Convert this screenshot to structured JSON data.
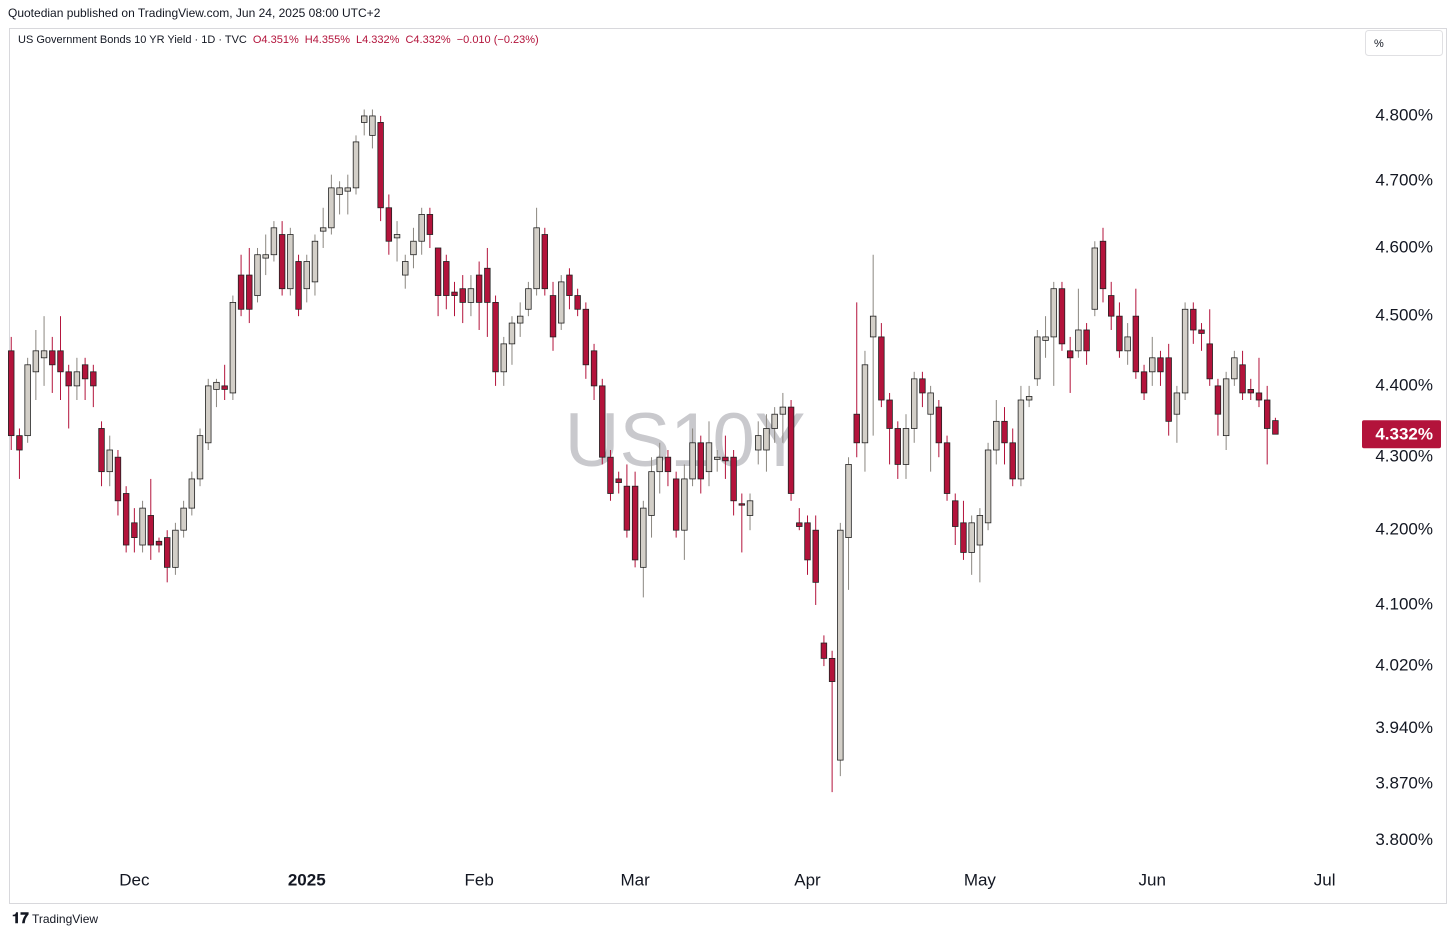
{
  "chart_data": {
    "type": "candlestick",
    "publisher": "Quotedian published on TradingView.com, Jun 24, 2025 08:00 UTC+2",
    "title": "US Government Bonds 10 YR Yield · 1D · TVC",
    "ohlc_header": [
      "O4.351%",
      "H4.355%",
      "L4.332%",
      "C4.332%",
      "−0.010 (−0.23%)"
    ],
    "watermark": "US10Y",
    "scale_label": "%",
    "footer": "TradingView",
    "log_scale": true,
    "up_color": "#d3cfc8",
    "down_color": "#b3133b",
    "open": [
      4.45,
      4.33,
      4.33,
      4.42,
      4.44,
      4.45,
      4.45,
      4.42,
      4.4,
      4.43,
      4.42,
      4.34,
      4.28,
      4.3,
      4.25,
      4.21,
      4.18,
      4.22,
      4.185,
      4.19,
      4.15,
      4.2,
      4.23,
      4.27,
      4.32,
      4.395,
      4.4,
      4.39,
      4.56,
      4.56,
      4.53,
      4.585,
      4.59,
      4.62,
      4.54,
      4.58,
      4.54,
      4.55,
      4.625,
      4.63,
      4.68,
      4.685,
      4.69,
      4.79,
      4.77,
      4.79,
      4.66,
      4.615,
      4.56,
      4.59,
      4.61,
      4.65,
      4.6,
      4.58,
      4.535,
      4.54,
      4.52,
      4.56,
      4.57,
      4.52,
      4.42,
      4.46,
      4.49,
      4.51,
      4.54,
      4.62,
      4.53,
      4.49,
      4.56,
      4.53,
      4.51,
      4.45,
      4.4,
      4.3,
      4.27,
      4.26,
      4.26,
      4.15,
      4.22,
      4.28,
      4.3,
      4.27,
      4.2,
      4.27,
      4.32,
      4.28,
      4.297,
      4.3,
      4.3,
      4.236,
      4.22,
      4.31,
      4.31,
      4.34,
      4.36,
      4.37,
      4.21,
      4.21,
      4.2,
      4.05,
      4.03,
      3.9,
      4.19,
      4.36,
      4.32,
      4.47,
      4.47,
      4.38,
      4.34,
      4.29,
      4.34,
      4.41,
      4.36,
      4.37,
      4.32,
      4.24,
      4.21,
      4.17,
      4.18,
      4.21,
      4.31,
      4.35,
      4.32,
      4.27,
      4.38,
      4.41,
      4.465,
      4.47,
      4.54,
      4.45,
      4.45,
      4.48,
      4.51,
      4.61,
      4.53,
      4.5,
      4.45,
      4.5,
      4.42,
      4.42,
      4.44,
      4.44,
      4.36,
      4.39,
      4.51,
      4.48,
      4.46,
      4.4,
      4.33,
      4.41,
      4.43,
      4.395,
      4.39,
      4.38,
      4.351
    ],
    "high": [
      4.47,
      4.34,
      4.44,
      4.48,
      4.5,
      4.47,
      4.5,
      4.43,
      4.44,
      4.44,
      4.43,
      4.35,
      4.33,
      4.31,
      4.26,
      4.23,
      4.24,
      4.27,
      4.19,
      4.2,
      4.21,
      4.24,
      4.28,
      4.34,
      4.41,
      4.41,
      4.43,
      4.53,
      4.59,
      4.6,
      4.6,
      4.62,
      4.64,
      4.64,
      4.63,
      4.59,
      4.59,
      4.62,
      4.66,
      4.71,
      4.7,
      4.71,
      4.77,
      4.81,
      4.81,
      4.8,
      4.68,
      4.64,
      4.59,
      4.63,
      4.66,
      4.66,
      4.6,
      4.59,
      4.55,
      4.56,
      4.56,
      4.58,
      4.6,
      4.53,
      4.47,
      4.5,
      4.52,
      4.55,
      4.66,
      4.63,
      4.55,
      4.56,
      4.57,
      4.54,
      4.52,
      4.46,
      4.41,
      4.31,
      4.28,
      4.29,
      4.28,
      4.24,
      4.3,
      4.32,
      4.31,
      4.28,
      4.29,
      4.34,
      4.33,
      4.35,
      4.31,
      4.33,
      4.31,
      4.25,
      4.25,
      4.35,
      4.36,
      4.37,
      4.39,
      4.38,
      4.23,
      4.22,
      4.22,
      4.06,
      4.04,
      4.21,
      4.3,
      4.52,
      4.45,
      4.59,
      4.49,
      4.39,
      4.35,
      4.36,
      4.42,
      4.42,
      4.4,
      4.38,
      4.33,
      4.25,
      4.24,
      4.22,
      4.23,
      4.32,
      4.38,
      4.37,
      4.34,
      4.4,
      4.4,
      4.48,
      4.5,
      4.55,
      4.55,
      4.47,
      4.54,
      4.49,
      4.61,
      4.63,
      4.55,
      4.52,
      4.49,
      4.54,
      4.43,
      4.47,
      4.45,
      4.46,
      4.4,
      4.52,
      4.52,
      4.49,
      4.51,
      4.41,
      4.42,
      4.45,
      4.45,
      4.41,
      4.44,
      4.4,
      4.355
    ],
    "low": [
      4.31,
      4.27,
      4.32,
      4.38,
      4.4,
      4.39,
      4.38,
      4.34,
      4.38,
      4.38,
      4.37,
      4.26,
      4.26,
      4.22,
      4.17,
      4.17,
      4.17,
      4.16,
      4.17,
      4.13,
      4.14,
      4.19,
      4.22,
      4.26,
      4.31,
      4.37,
      4.38,
      4.38,
      4.5,
      4.49,
      4.52,
      4.56,
      4.58,
      4.53,
      4.53,
      4.5,
      4.52,
      4.53,
      4.6,
      4.62,
      4.65,
      4.65,
      4.68,
      4.77,
      4.75,
      4.64,
      4.59,
      4.58,
      4.54,
      4.57,
      4.59,
      4.6,
      4.5,
      4.51,
      4.5,
      4.49,
      4.5,
      4.48,
      4.47,
      4.4,
      4.4,
      4.43,
      4.47,
      4.5,
      4.53,
      4.53,
      4.45,
      4.48,
      4.51,
      4.5,
      4.41,
      4.38,
      4.29,
      4.24,
      4.25,
      4.19,
      4.15,
      4.11,
      4.19,
      4.25,
      4.26,
      4.19,
      4.16,
      4.26,
      4.25,
      4.26,
      4.28,
      4.27,
      4.22,
      4.17,
      4.2,
      4.29,
      4.28,
      4.32,
      4.32,
      4.24,
      4.2,
      4.14,
      4.1,
      4.02,
      3.86,
      3.88,
      4.12,
      4.3,
      4.28,
      4.33,
      4.37,
      4.29,
      4.27,
      4.27,
      4.32,
      4.37,
      4.28,
      4.3,
      4.24,
      4.18,
      4.16,
      4.14,
      4.13,
      4.2,
      4.29,
      4.29,
      4.26,
      4.26,
      4.37,
      4.4,
      4.44,
      4.4,
      4.45,
      4.39,
      4.44,
      4.43,
      4.5,
      4.52,
      4.48,
      4.44,
      4.43,
      4.41,
      4.38,
      4.4,
      4.4,
      4.33,
      4.32,
      4.38,
      4.46,
      4.45,
      4.4,
      4.33,
      4.31,
      4.4,
      4.38,
      4.38,
      4.37,
      4.29,
      4.332
    ],
    "close": [
      4.33,
      4.31,
      4.43,
      4.45,
      4.45,
      4.43,
      4.42,
      4.4,
      4.42,
      4.41,
      4.4,
      4.28,
      4.31,
      4.24,
      4.18,
      4.19,
      4.23,
      4.18,
      4.18,
      4.15,
      4.2,
      4.23,
      4.27,
      4.33,
      4.4,
      4.405,
      4.395,
      4.52,
      4.51,
      4.51,
      4.59,
      4.59,
      4.63,
      4.54,
      4.62,
      4.51,
      4.58,
      4.61,
      4.63,
      4.69,
      4.69,
      4.69,
      4.76,
      4.8,
      4.8,
      4.66,
      4.61,
      4.62,
      4.58,
      4.61,
      4.65,
      4.62,
      4.53,
      4.53,
      4.53,
      4.52,
      4.54,
      4.52,
      4.52,
      4.42,
      4.46,
      4.49,
      4.5,
      4.54,
      4.63,
      4.54,
      4.47,
      4.55,
      4.53,
      4.51,
      4.43,
      4.4,
      4.3,
      4.25,
      4.265,
      4.2,
      4.16,
      4.23,
      4.28,
      4.3,
      4.28,
      4.2,
      4.27,
      4.32,
      4.27,
      4.32,
      4.3,
      4.295,
      4.24,
      4.234,
      4.24,
      4.33,
      4.34,
      4.36,
      4.37,
      4.25,
      4.205,
      4.16,
      4.13,
      4.03,
      4.0,
      4.2,
      4.29,
      4.32,
      4.43,
      4.5,
      4.38,
      4.34,
      4.29,
      4.34,
      4.41,
      4.39,
      4.39,
      4.32,
      4.25,
      4.205,
      4.17,
      4.21,
      4.22,
      4.31,
      4.35,
      4.32,
      4.27,
      4.38,
      4.385,
      4.47,
      4.47,
      4.54,
      4.46,
      4.44,
      4.48,
      4.45,
      4.6,
      4.54,
      4.5,
      4.45,
      4.47,
      4.42,
      4.39,
      4.44,
      4.42,
      4.35,
      4.39,
      4.51,
      4.48,
      4.475,
      4.41,
      4.36,
      4.41,
      4.44,
      4.39,
      4.39,
      4.38,
      4.34,
      4.332
    ],
    "xlim": [
      -0.15,
      164.55
    ],
    "xticks": [
      {
        "value": 15,
        "label": "Dec"
      },
      {
        "value": 36,
        "label": "2025"
      },
      {
        "value": 57,
        "label": "Feb"
      },
      {
        "value": 76,
        "label": "Mar"
      },
      {
        "value": 97,
        "label": "Apr"
      },
      {
        "value": 118,
        "label": "May"
      },
      {
        "value": 139,
        "label": "Jun"
      },
      {
        "value": 160,
        "label": "Jul"
      }
    ],
    "ylim": [
      3.774,
      4.938
    ],
    "yticks": [
      {
        "value": 4.8,
        "label": "4.800%"
      },
      {
        "value": 4.7,
        "label": "4.700%"
      },
      {
        "value": 4.6,
        "label": "4.600%"
      },
      {
        "value": 4.5,
        "label": "4.500%"
      },
      {
        "value": 4.4,
        "label": "4.400%"
      },
      {
        "value": 4.3,
        "label": "4.300%"
      },
      {
        "value": 4.2,
        "label": "4.200%"
      },
      {
        "value": 4.1,
        "label": "4.100%"
      },
      {
        "value": 4.02,
        "label": "4.020%"
      },
      {
        "value": 3.94,
        "label": "3.940%"
      },
      {
        "value": 3.87,
        "label": "3.870%"
      },
      {
        "value": 3.8,
        "label": "3.800%"
      }
    ],
    "last_price": {
      "value": 4.332,
      "label": "4.332%"
    }
  }
}
